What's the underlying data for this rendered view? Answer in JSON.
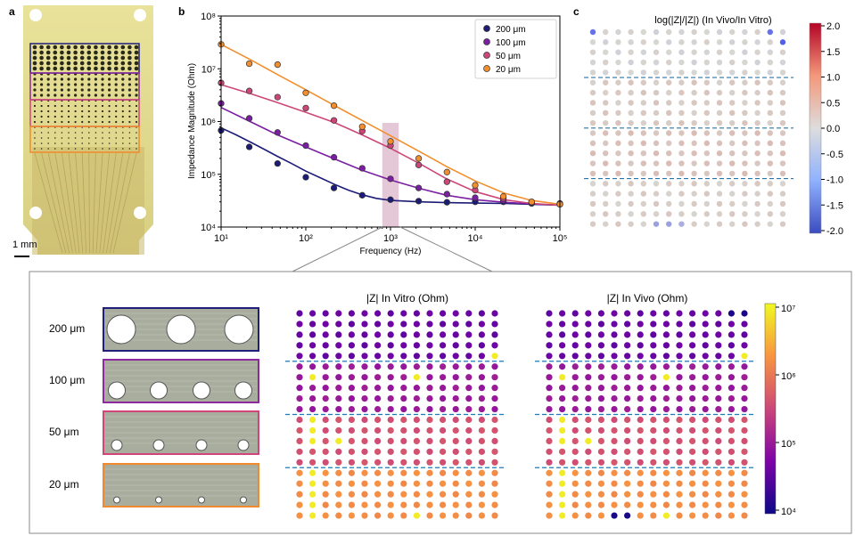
{
  "panels": {
    "a": "a",
    "b": "b",
    "c": "c"
  },
  "panel_a": {
    "scale_bar_label": "1 mm",
    "box_colors": [
      "#1f1f7a",
      "#8e2a9e",
      "#d0457a",
      "#f08a2c"
    ]
  },
  "electrode_sizes": [
    "200 μm",
    "100 μm",
    "50 μm",
    "20 μm"
  ],
  "series_colors": [
    "#1c1c78",
    "#7a1fa2",
    "#cc4778",
    "#f28e2b"
  ],
  "chart_data": [
    {
      "type": "line",
      "panel": "b",
      "title": "",
      "xlabel": "Frequency (Hz)",
      "ylabel": "Impedance Magnitude (Ohm)",
      "xscale": "log",
      "yscale": "log",
      "xlim": [
        10,
        100000
      ],
      "ylim": [
        10000,
        100000000
      ],
      "x_tick_labels": [
        "10¹",
        "10²",
        "10³",
        "10⁴",
        "10⁵"
      ],
      "y_tick_labels": [
        "10⁴",
        "10⁵",
        "10⁶",
        "10⁷",
        "10⁸"
      ],
      "x_tick_values": [
        10,
        100,
        1000,
        10000,
        100000
      ],
      "y_tick_values": [
        10000,
        100000,
        1000000,
        10000000,
        100000000
      ],
      "highlight_band": [
        800,
        1250
      ],
      "legend_position": "top-right",
      "series": [
        {
          "name": "200 μm",
          "color": "#1c1c78",
          "points": [
            [
              10,
              680000
            ],
            [
              21.5,
              330000
            ],
            [
              46.4,
              160000
            ],
            [
              100,
              88000
            ],
            [
              215,
              55000
            ],
            [
              464,
              40000
            ],
            [
              1000,
              33000
            ],
            [
              2150,
              31000
            ],
            [
              4640,
              29500
            ],
            [
              10000,
              30000
            ],
            [
              21500,
              30000
            ],
            [
              46400,
              28000
            ],
            [
              100000,
              28000
            ]
          ],
          "fit": [
            [
              10,
              760000
            ],
            [
              15,
              560000
            ],
            [
              22,
              410000
            ],
            [
              32,
              300000
            ],
            [
              46,
              220000
            ],
            [
              68,
              160000
            ],
            [
              100,
              115000
            ],
            [
              150,
              85000
            ],
            [
              220,
              64000
            ],
            [
              320,
              50000
            ],
            [
              460,
              41000
            ],
            [
              680,
              35000
            ],
            [
              1000,
              32000
            ],
            [
              2200,
              30000
            ],
            [
              4600,
              29000
            ],
            [
              10000,
              28500
            ],
            [
              22000,
              28000
            ],
            [
              46000,
              27000
            ],
            [
              100000,
              26000
            ]
          ]
        },
        {
          "name": "100 μm",
          "color": "#7a1fa2",
          "points": [
            [
              10,
              2200000
            ],
            [
              21.5,
              1150000
            ],
            [
              46.4,
              620000
            ],
            [
              100,
              350000
            ],
            [
              215,
              210000
            ],
            [
              464,
              130000
            ],
            [
              1000,
              82000
            ],
            [
              2150,
              55000
            ],
            [
              4640,
              42000
            ],
            [
              10000,
              36000
            ],
            [
              21500,
              32000
            ],
            [
              46400,
              29000
            ],
            [
              100000,
              27000
            ]
          ],
          "fit": [
            [
              10,
              1850000
            ],
            [
              22,
              1000000
            ],
            [
              46,
              560000
            ],
            [
              100,
              330000
            ],
            [
              220,
              195000
            ],
            [
              460,
              120000
            ],
            [
              1000,
              78000
            ],
            [
              2200,
              54000
            ],
            [
              4600,
              40000
            ],
            [
              10000,
              33000
            ],
            [
              22000,
              29500
            ],
            [
              46000,
              27500
            ],
            [
              100000,
              26000
            ]
          ]
        },
        {
          "name": "50 μm",
          "color": "#cc4778",
          "points": [
            [
              10,
              5400000
            ],
            [
              21.5,
              3800000
            ],
            [
              46.4,
              2900000
            ],
            [
              100,
              1800000
            ],
            [
              215,
              1050000
            ],
            [
              464,
              660000
            ],
            [
              1000,
              350000
            ],
            [
              2150,
              150000
            ],
            [
              4640,
              72000
            ],
            [
              10000,
              50000
            ],
            [
              21500,
              35000
            ],
            [
              46400,
              30000
            ],
            [
              100000,
              27000
            ]
          ],
          "fit": [
            [
              10,
              5000000
            ],
            [
              22,
              3400000
            ],
            [
              46,
              2300000
            ],
            [
              100,
              1500000
            ],
            [
              220,
              950000
            ],
            [
              460,
              560000
            ],
            [
              1000,
              310000
            ],
            [
              2200,
              160000
            ],
            [
              4600,
              82000
            ],
            [
              10000,
              47000
            ],
            [
              22000,
              33000
            ],
            [
              46000,
              28000
            ],
            [
              100000,
              26000
            ]
          ]
        },
        {
          "name": "20 μm",
          "color": "#f28e2b",
          "points": [
            [
              10,
              29000000
            ],
            [
              21.5,
              12500000
            ],
            [
              46.4,
              12000000
            ],
            [
              100,
              3500000
            ],
            [
              215,
              2000000
            ],
            [
              464,
              800000
            ],
            [
              1000,
              420000
            ],
            [
              2150,
              200000
            ],
            [
              4640,
              110000
            ],
            [
              10000,
              62000
            ],
            [
              21500,
              38000
            ],
            [
              46400,
              30000
            ],
            [
              100000,
              27000
            ]
          ],
          "fit": [
            [
              10,
              29000000
            ],
            [
              22,
              15000000
            ],
            [
              46,
              7800000
            ],
            [
              100,
              4000000
            ],
            [
              220,
              2000000
            ],
            [
              460,
              1050000
            ],
            [
              1000,
              540000
            ],
            [
              2200,
              270000
            ],
            [
              4600,
              140000
            ],
            [
              10000,
              75000
            ],
            [
              22000,
              44000
            ],
            [
              46000,
              32000
            ],
            [
              100000,
              27000
            ]
          ]
        }
      ]
    },
    {
      "type": "heatmap",
      "panel": "c",
      "title": "log(|Z|/|Z|) (In Vivo/In Vitro)",
      "grid": {
        "rows": 20,
        "cols": 16
      },
      "color_scale": {
        "min": -2.0,
        "max": 2.0,
        "ticks": [
          "2.0",
          "1.5",
          "1.0",
          "0.5",
          "0.0",
          "-0.5",
          "-1.0",
          "-1.5",
          "-2.0"
        ]
      },
      "row_group_boundaries": [
        5,
        10,
        15
      ],
      "notable_cells": [
        {
          "row": 0,
          "col": 0,
          "value": -1.5
        },
        {
          "row": 0,
          "col": 14,
          "value": -1.5
        },
        {
          "row": 1,
          "col": 15,
          "value": -1.8
        },
        {
          "row": 19,
          "col": 5,
          "value": -0.8
        },
        {
          "row": 19,
          "col": 6,
          "value": -0.8
        },
        {
          "row": 19,
          "col": 7,
          "value": -0.6
        }
      ]
    },
    {
      "type": "heatmap",
      "panel": "zoom-left",
      "title": "|Z| In Vitro (Ohm)",
      "grid": {
        "rows": 20,
        "cols": 16
      },
      "row_group_boundaries": [
        5,
        10,
        15
      ],
      "group_typical_ohm": [
        40000,
        100000,
        400000,
        1500000
      ],
      "high_cells": [
        [
          4,
          15
        ],
        [
          6,
          1
        ],
        [
          6,
          9
        ],
        [
          10,
          1
        ],
        [
          11,
          1
        ],
        [
          12,
          1
        ],
        [
          12,
          3
        ],
        [
          15,
          1
        ],
        [
          16,
          1
        ],
        [
          17,
          1
        ],
        [
          18,
          1
        ],
        [
          19,
          1
        ],
        [
          19,
          9
        ]
      ]
    },
    {
      "type": "heatmap",
      "panel": "zoom-right",
      "title": "|Z| In Vivo (Ohm)",
      "grid": {
        "rows": 20,
        "cols": 16
      },
      "row_group_boundaries": [
        5,
        10,
        15
      ],
      "group_typical_ohm": [
        40000,
        100000,
        400000,
        1500000
      ],
      "high_cells": [
        [
          4,
          15
        ],
        [
          6,
          1
        ],
        [
          6,
          9
        ],
        [
          10,
          1
        ],
        [
          11,
          1
        ],
        [
          12,
          1
        ],
        [
          12,
          3
        ],
        [
          15,
          1
        ],
        [
          16,
          1
        ],
        [
          17,
          1
        ],
        [
          18,
          1
        ],
        [
          19,
          1
        ],
        [
          19,
          9
        ]
      ],
      "low_cells": [
        [
          0,
          14
        ],
        [
          0,
          15
        ],
        [
          19,
          5
        ],
        [
          19,
          6
        ]
      ]
    },
    {
      "type": "colorbar",
      "panel": "zoom-colorbar",
      "scale": "log",
      "range": [
        10000,
        10000000
      ],
      "tick_labels": [
        "10⁷",
        "10⁶",
        "10⁵",
        "10⁴"
      ]
    }
  ]
}
